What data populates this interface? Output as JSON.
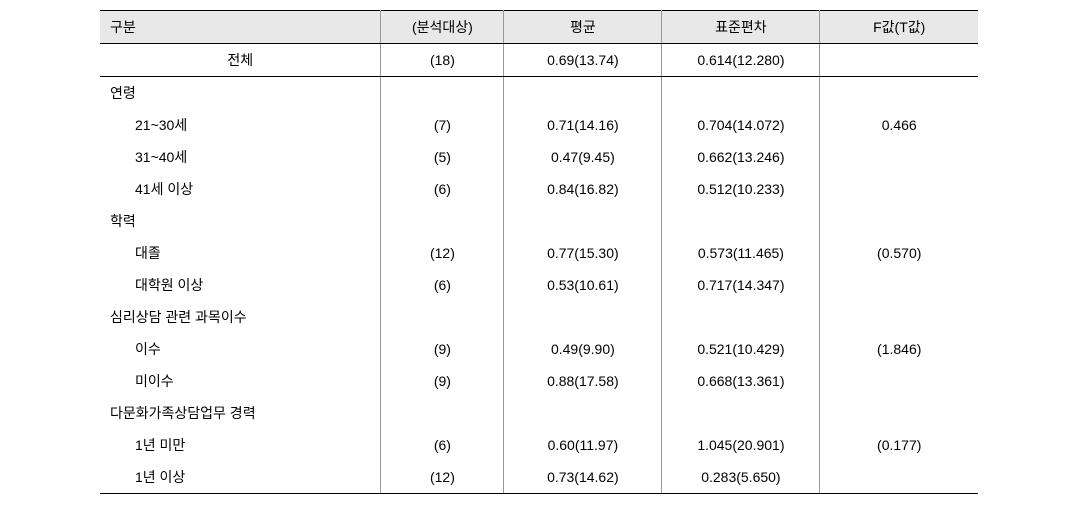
{
  "table": {
    "headers": {
      "category": "구분",
      "n": "(분석대상)",
      "mean": "평균",
      "sd": "표준편차",
      "f": "F값(T값)"
    },
    "total_row": {
      "label": "전체",
      "n": "(18)",
      "mean": "0.69(13.74)",
      "sd": "0.614(12.280)",
      "f": ""
    },
    "groups": [
      {
        "header": "연령",
        "f": "0.466",
        "items": [
          {
            "label": "21~30세",
            "n": "(7)",
            "mean": "0.71(14.16)",
            "sd": "0.704(14.072)"
          },
          {
            "label": "31~40세",
            "n": "(5)",
            "mean": "0.47(9.45)",
            "sd": "0.662(13.246)"
          },
          {
            "label": "41세 이상",
            "n": "(6)",
            "mean": "0.84(16.82)",
            "sd": "0.512(10.233)"
          }
        ]
      },
      {
        "header": "학력",
        "f": "(0.570)",
        "items": [
          {
            "label": "대졸",
            "n": "(12)",
            "mean": "0.77(15.30)",
            "sd": "0.573(11.465)"
          },
          {
            "label": "대학원 이상",
            "n": "(6)",
            "mean": "0.53(10.61)",
            "sd": "0.717(14.347)"
          }
        ]
      },
      {
        "header": "심리상담 관련 과목이수",
        "f": "(1.846)",
        "items": [
          {
            "label": "이수",
            "n": "(9)",
            "mean": "0.49(9.90)",
            "sd": "0.521(10.429)"
          },
          {
            "label": "미이수",
            "n": "(9)",
            "mean": "0.88(17.58)",
            "sd": "0.668(13.361)"
          }
        ]
      },
      {
        "header": "다문화가족상담업무 경력",
        "f": "(0.177)",
        "items": [
          {
            "label": "1년 미만",
            "n": "(6)",
            "mean": "0.60(11.97)",
            "sd": "1.045(20.901)"
          },
          {
            "label": "1년 이상",
            "n": "(12)",
            "mean": "0.73(14.62)",
            "sd": "0.283(5.650)"
          }
        ]
      }
    ]
  },
  "styling": {
    "background_color": "#ffffff",
    "header_bg_color": "#e8e8e8",
    "border_color_strong": "#000000",
    "border_color_light": "#999999",
    "font_size": 14,
    "font_family": "Malgun Gothic"
  }
}
